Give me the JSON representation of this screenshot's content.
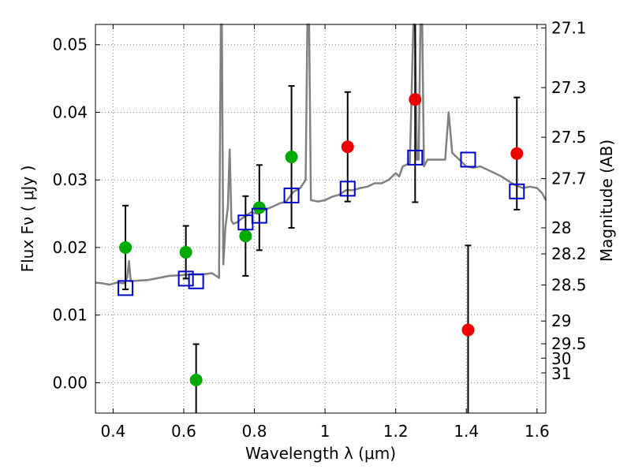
{
  "chart_data": {
    "type": "scatter",
    "xlabel": "Wavelength  λ (μm)",
    "ylabel": "Flux  Fν  ( μJy )",
    "y2label": "Magnitude (AB)",
    "xlim": [
      0.35,
      1.625
    ],
    "ylim": [
      -0.0045,
      0.053
    ],
    "grid": true,
    "x_ticks": [
      0.4,
      0.6,
      0.8,
      1.0,
      1.2,
      1.4,
      1.6
    ],
    "x_tick_labels": [
      "0.4",
      "0.6",
      "0.8",
      "1",
      "1.2",
      "1.4",
      "1.6"
    ],
    "y_ticks": [
      0.0,
      0.01,
      0.02,
      0.03,
      0.04,
      0.05
    ],
    "y_tick_labels": [
      "0.00",
      "0.01",
      "0.02",
      "0.03",
      "0.04",
      "0.05"
    ],
    "mag_ticks": [
      27.1,
      27.3,
      27.5,
      27.7,
      28,
      28.2,
      28.5,
      29,
      29.5,
      30,
      31
    ],
    "mag_tick_labels": [
      "27.1",
      "27.3",
      "27.5",
      "27.7",
      "28",
      "28.2",
      "28.5",
      "29",
      "29.5",
      "30",
      "31"
    ],
    "colors": {
      "green": "#00aa00",
      "red": "#ee0000",
      "model": "#808080",
      "box": "#0000cc",
      "errorbar": "#000000",
      "grid": "#808080"
    },
    "series": [
      {
        "marker": "circle",
        "color": "#00aa00",
        "points": [
          {
            "x": 0.435,
            "y": 0.02,
            "err": 0.0062
          },
          {
            "x": 0.606,
            "y": 0.0193,
            "err": 0.0039
          },
          {
            "x": 0.635,
            "y": 0.0004,
            "err": 0.0053
          },
          {
            "x": 0.775,
            "y": 0.0217,
            "err": 0.0059
          },
          {
            "x": 0.814,
            "y": 0.0259,
            "err": 0.0063
          },
          {
            "x": 0.905,
            "y": 0.0334,
            "err": 0.0105
          }
        ]
      },
      {
        "marker": "circle",
        "color": "#ee0000",
        "points": [
          {
            "x": 1.064,
            "y": 0.0349,
            "err": 0.0081
          },
          {
            "x": 1.255,
            "y": 0.0419,
            "err": 0.0152
          },
          {
            "x": 1.405,
            "y": 0.0078,
            "err": 0.0125
          },
          {
            "x": 1.543,
            "y": 0.0339,
            "err": 0.0083
          }
        ]
      },
      {
        "marker": "open-square",
        "color": "#0000cc",
        "points": [
          {
            "x": 0.435,
            "y": 0.014
          },
          {
            "x": 0.606,
            "y": 0.0154
          },
          {
            "x": 0.635,
            "y": 0.015
          },
          {
            "x": 0.775,
            "y": 0.0237
          },
          {
            "x": 0.814,
            "y": 0.0247
          },
          {
            "x": 0.905,
            "y": 0.0277
          },
          {
            "x": 1.064,
            "y": 0.0287
          },
          {
            "x": 1.255,
            "y": 0.0333
          },
          {
            "x": 1.405,
            "y": 0.033
          },
          {
            "x": 1.543,
            "y": 0.0283
          }
        ]
      }
    ],
    "model_spectrum": {
      "color": "#808080",
      "x": [
        0.35,
        0.37,
        0.39,
        0.41,
        0.43,
        0.44,
        0.445,
        0.45,
        0.47,
        0.5,
        0.53,
        0.56,
        0.59,
        0.62,
        0.65,
        0.68,
        0.7,
        0.705,
        0.708,
        0.712,
        0.718,
        0.725,
        0.73,
        0.735,
        0.74,
        0.75,
        0.77,
        0.79,
        0.81,
        0.83,
        0.85,
        0.87,
        0.89,
        0.91,
        0.93,
        0.945,
        0.95,
        0.955,
        0.96,
        0.98,
        1.0,
        1.02,
        1.04,
        1.06,
        1.08,
        1.1,
        1.12,
        1.14,
        1.16,
        1.18,
        1.2,
        1.21,
        1.22,
        1.24,
        1.25,
        1.255,
        1.26,
        1.265,
        1.27,
        1.275,
        1.28,
        1.285,
        1.29,
        1.3,
        1.32,
        1.34,
        1.35,
        1.355,
        1.36,
        1.38,
        1.4,
        1.42,
        1.44,
        1.46,
        1.48,
        1.5,
        1.52,
        1.54,
        1.56,
        1.58,
        1.6,
        1.615,
        1.625
      ],
      "y": [
        0.0148,
        0.0147,
        0.0145,
        0.0148,
        0.0147,
        0.0155,
        0.018,
        0.015,
        0.0151,
        0.0152,
        0.0155,
        0.0158,
        0.0159,
        0.016,
        0.016,
        0.0162,
        0.0155,
        0.053,
        0.053,
        0.0175,
        0.023,
        0.026,
        0.0345,
        0.024,
        0.0235,
        0.0237,
        0.0245,
        0.0252,
        0.025,
        0.0256,
        0.026,
        0.0265,
        0.0268,
        0.0282,
        0.0288,
        0.03,
        0.053,
        0.053,
        0.027,
        0.0268,
        0.027,
        0.0275,
        0.0278,
        0.0285,
        0.0285,
        0.0288,
        0.029,
        0.0295,
        0.0295,
        0.03,
        0.031,
        0.0305,
        0.032,
        0.0325,
        0.053,
        0.053,
        0.033,
        0.033,
        0.053,
        0.053,
        0.032,
        0.0325,
        0.033,
        0.033,
        0.033,
        0.033,
        0.04,
        0.037,
        0.034,
        0.033,
        0.032,
        0.0318,
        0.032,
        0.0315,
        0.031,
        0.0305,
        0.0298,
        0.0292,
        0.0288,
        0.029,
        0.0288,
        0.028,
        0.027
      ]
    }
  }
}
